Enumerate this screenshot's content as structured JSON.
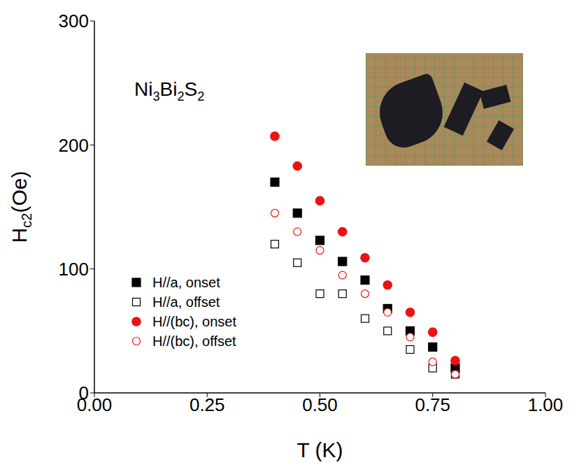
{
  "chart_data": {
    "type": "scatter",
    "title": "Ni3Bi2S2",
    "xlabel": "T (K)",
    "ylabel": "Hc2(Oe)",
    "x": [
      0.4,
      0.45,
      0.5,
      0.55,
      0.6,
      0.65,
      0.7,
      0.75,
      0.8
    ],
    "series": [
      {
        "name": "H//a, onset",
        "color": "#000000",
        "marker": "square",
        "values": [
          170,
          145,
          123,
          106,
          91,
          68,
          50,
          37,
          20
        ]
      },
      {
        "name": "H//a, offset",
        "color": "#000000",
        "marker": "open_square",
        "values": [
          120,
          105,
          80,
          80,
          60,
          50,
          35,
          20,
          15
        ]
      },
      {
        "name": "H//(bc), onset",
        "color": "#ee1111",
        "marker": "circle",
        "values": [
          207,
          183,
          155,
          130,
          109,
          87,
          65,
          49,
          26
        ]
      },
      {
        "name": "H//(bc), offset",
        "color": "#ee1111",
        "marker": "open_circle",
        "values": [
          145,
          130,
          115,
          95,
          80,
          65,
          45,
          25,
          15
        ]
      }
    ],
    "xlim": [
      0,
      1
    ],
    "xticks": [
      {
        "value": 0,
        "label": "0.00"
      },
      {
        "value": 0.25,
        "label": "0.25"
      },
      {
        "value": 0.5,
        "label": "0.50"
      },
      {
        "value": 0.75,
        "label": "0.75"
      },
      {
        "value": 1,
        "label": "1.00"
      }
    ],
    "ylim": [
      0,
      300
    ],
    "yticks": [
      0,
      100,
      200,
      300
    ],
    "legend": "lower left",
    "grid": false
  }
}
